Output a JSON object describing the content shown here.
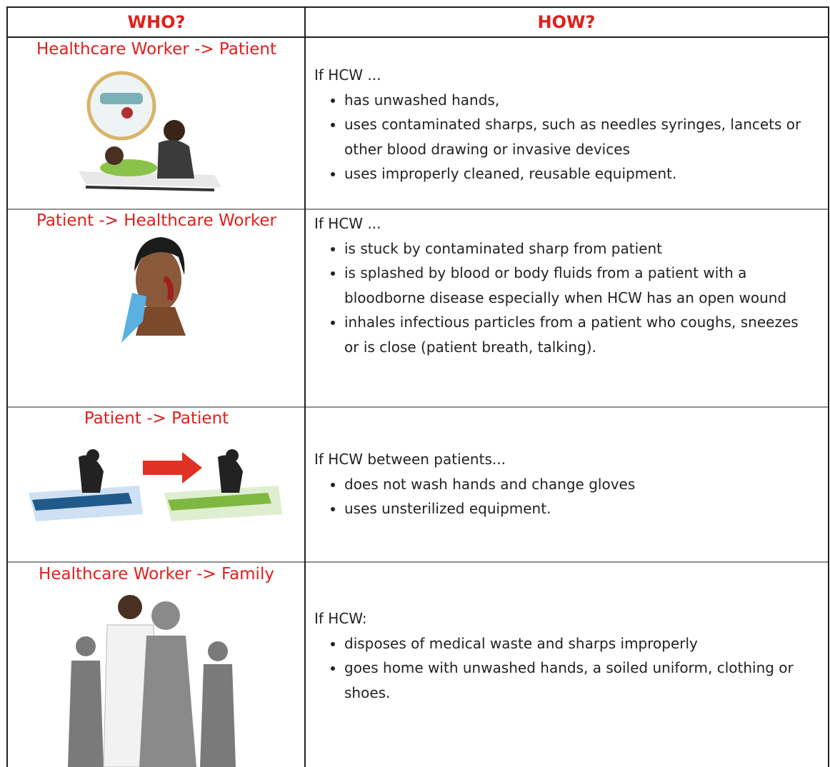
{
  "header": {
    "who": "WHO?",
    "how": "HOW?"
  },
  "rows": [
    {
      "who": "Healthcare Worker -> Patient",
      "intro": "If HCW ...",
      "bullets": [
        "has unwashed hands,",
        "uses contaminated sharps, such as needles syringes, lancets or other blood drawing or invasive devices",
        "uses improperly cleaned, reusable equipment."
      ]
    },
    {
      "who": "Patient -> Healthcare Worker",
      "intro": "If HCW ...",
      "bullets": [
        "is stuck by contaminated sharp from patient",
        "is splashed by blood or body fluids from a patient with a bloodborne disease especially when HCW has an open wound",
        "inhales infectious particles from a patient who coughs, sneezes or is close (patient breath, talking)."
      ]
    },
    {
      "who": "Patient -> Patient",
      "intro": "If HCW between patients...",
      "bullets": [
        "does not wash hands and change gloves",
        "uses unsterilized equipment."
      ]
    },
    {
      "who": "Healthcare Worker -> Family",
      "intro": "If HCW:",
      "bullets": [
        "disposes of medical waste and sharps improperly",
        "goes home with unwashed hands, a soiled uniform, clothing or shoes."
      ]
    }
  ]
}
